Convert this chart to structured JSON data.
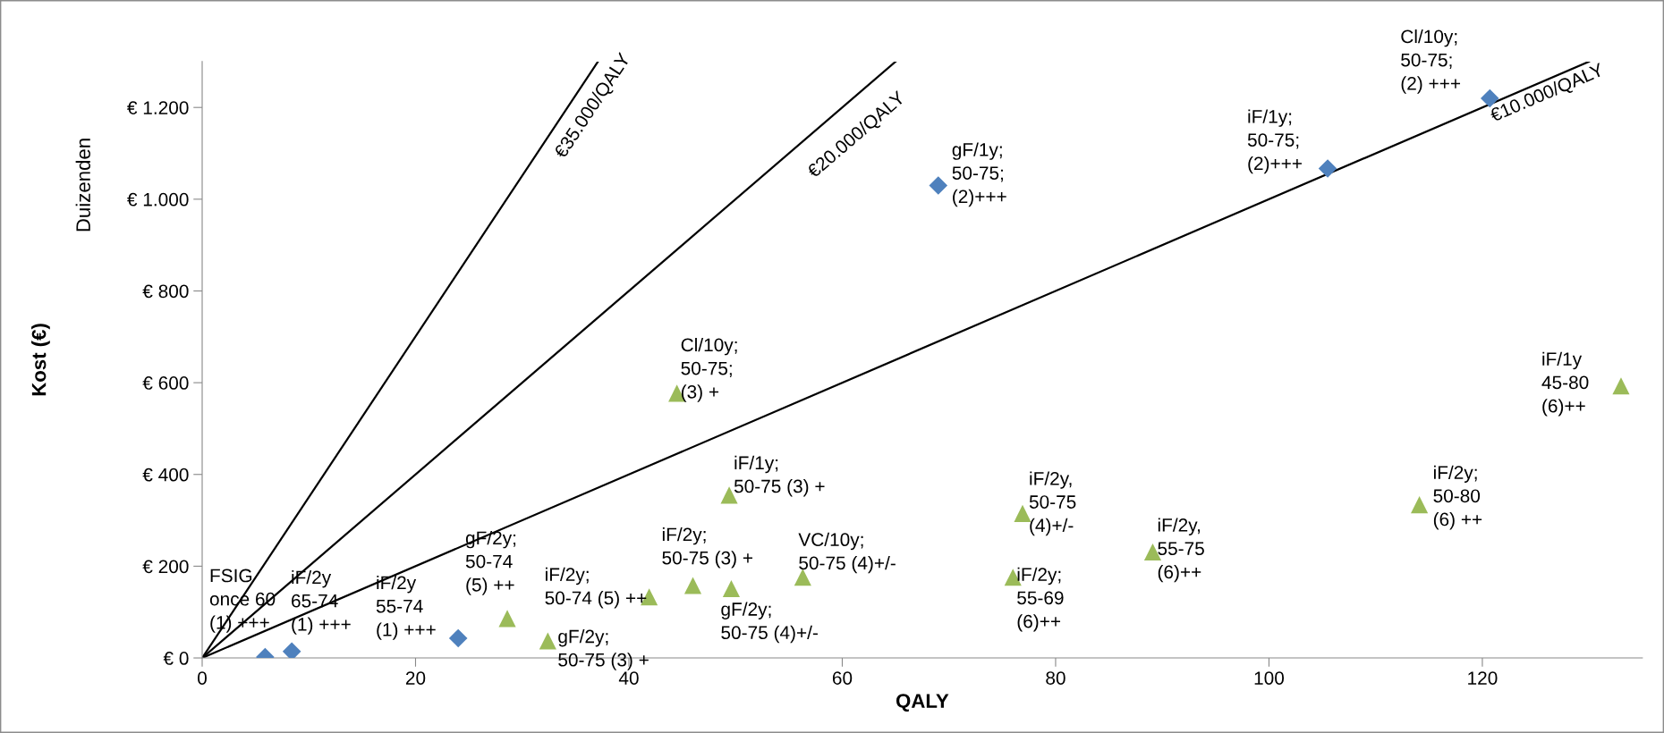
{
  "chart_data": {
    "type": "scatter",
    "xlabel": "QALY",
    "ylabel": "Kost (€)",
    "xlim": [
      0,
      135
    ],
    "xticks": [
      0,
      20,
      40,
      60,
      80,
      100,
      120
    ],
    "ylim": [
      0,
      1300
    ],
    "yticks": [
      {
        "value": 0,
        "label": "€ 0"
      },
      {
        "value": 200,
        "label": "€ 200"
      },
      {
        "value": 400,
        "label": "€ 400"
      },
      {
        "value": 600,
        "label": "€ 600"
      },
      {
        "value": 800,
        "label": "€ 800"
      },
      {
        "value": 1000,
        "label": "€ 1.000"
      },
      {
        "value": 1200,
        "label": "€ 1.200"
      }
    ],
    "grid": false,
    "legend": false,
    "series": [
      {
        "marker": "diamond",
        "color": "#4f81bd",
        "x": [
          5.9,
          8.4,
          24.0,
          69.0,
          105.5,
          120.7
        ],
        "values": [
          2,
          14,
          43,
          1030,
          1067,
          1220
        ]
      },
      {
        "marker": "triangle",
        "color": "#9bbb59",
        "x": [
          28.6,
          32.4,
          41.9,
          46.0,
          49.6,
          49.4,
          56.3,
          76.9,
          76.0,
          89.1,
          114.1,
          133.0,
          44.5
        ],
        "values": [
          86,
          37,
          133,
          158,
          151,
          355,
          176,
          315,
          176,
          231,
          334,
          593,
          577
        ]
      },
      {
        "type": "line",
        "name": "€35.000/QALY",
        "color": "#000000",
        "marker": "none",
        "line_style": "solid",
        "x": [
          0,
          37.1
        ],
        "values": [
          0,
          1300
        ]
      },
      {
        "type": "line",
        "name": "€20.000/QALY",
        "color": "#000000",
        "marker": "none",
        "line_style": "solid",
        "x": [
          0,
          65
        ],
        "values": [
          0,
          1300
        ]
      },
      {
        "type": "line",
        "name": "€10.000/QALY",
        "color": "#000000",
        "marker": "none",
        "line_style": "solid",
        "x": [
          0,
          130
        ],
        "values": [
          0,
          1300
        ]
      }
    ],
    "annotations": [
      "Duizenden",
      "FSIG\nonce 60\n(1) +++",
      "iF/2y\n65-74\n(1) +++",
      "iF/2y\n55-74\n(1) +++",
      {
        "text": "gF/2y;\n50-74\n(5) ++",
        "x": 28.6,
        "y": 86
      },
      {
        "text": "gF/2y;\n50-75 (3) +",
        "x": 32.4,
        "y": 37
      },
      {
        "text": "iF/2y;\n50-74 (5) ++",
        "x": 41.9,
        "y": 133
      },
      {
        "text": "iF/2y;\n50-75 (3) +",
        "x": 46.0,
        "y": 158
      },
      {
        "text": "gF/2y;\n50-75 (4)+/-",
        "x": 49.6,
        "y": 151
      },
      {
        "text": "iF/1y;\n50-75 (3) +",
        "x": 49.4,
        "y": 355
      },
      {
        "text": "VC/10y;\n50-75 (4)+/-",
        "x": 56.3,
        "y": 176
      },
      {
        "text": "iF/2y,\n50-75\n(4)+/-",
        "x": 76.9,
        "y": 315
      },
      {
        "text": "iF/2y;\n55-69\n(6)++",
        "x": 76.0,
        "y": 176
      },
      {
        "text": "iF/2y,\n55-75\n(6)++",
        "x": 89.1,
        "y": 231
      },
      {
        "text": "iF/2y;\n50-80\n(6) ++",
        "x": 114.1,
        "y": 334
      },
      {
        "text": "iF/1y\n45-80\n(6)++",
        "x": 133.0,
        "y": 593
      },
      {
        "text": "Cl/10y;\n50-75;\n(3) +",
        "x": 44.5,
        "y": 577
      },
      {
        "text": "gF/1y;\n50-75;\n(2)+++",
        "x": 69.0,
        "y": 1030
      },
      {
        "text": "iF/1y;\n50-75;\n(2)+++",
        "x": 105.5,
        "y": 1067
      },
      {
        "text": "Cl/10y;\n50-75;\n(2) +++",
        "x": 120.7,
        "y": 1220
      }
    ]
  }
}
